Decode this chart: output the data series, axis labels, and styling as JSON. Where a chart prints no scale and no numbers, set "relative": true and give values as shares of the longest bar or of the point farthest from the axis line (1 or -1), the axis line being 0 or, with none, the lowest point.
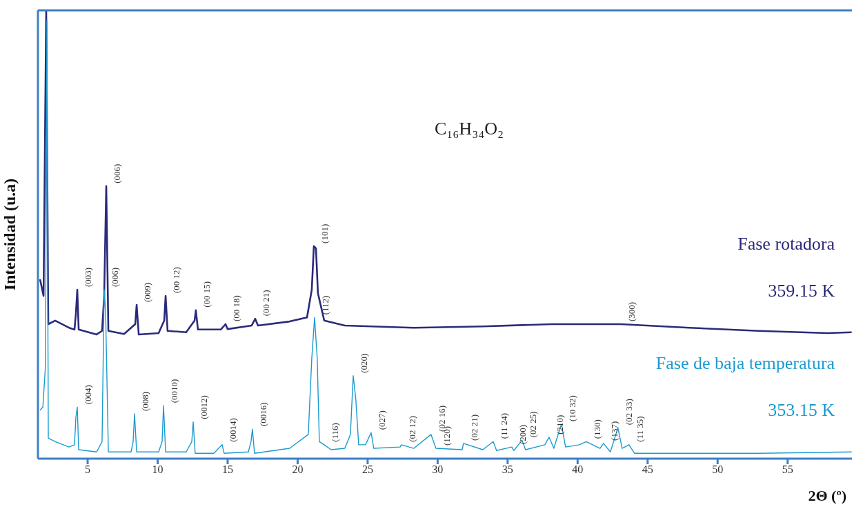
{
  "chart_data": {
    "type": "line",
    "title": "C₁₆H₃₄O₂",
    "xlabel": "2Θ (º)",
    "ylabel": "Intensidad (u.a)",
    "relative": true,
    "xlim": [
      1.45,
      59.6
    ],
    "xticks": [
      5,
      10,
      15,
      20,
      25,
      30,
      35,
      40,
      45,
      50,
      55
    ],
    "legend": false,
    "marker": "none",
    "grid": false,
    "series": [
      {
        "name": "Fase rotadora",
        "color": "#2b2a7a",
        "x": [
          1.6,
          1.85,
          2.04,
          2.19,
          2.68,
          3.67,
          4.06,
          4.16,
          4.26,
          4.36,
          5.64,
          6.03,
          6.18,
          6.33,
          6.48,
          7.6,
          8.4,
          8.5,
          8.65,
          10.07,
          10.47,
          10.57,
          10.71,
          12.04,
          12.64,
          12.73,
          12.88,
          14.51,
          14.85,
          15.0,
          16.72,
          16.97,
          17.17,
          19.43,
          20.67,
          21.01,
          21.16,
          21.31,
          21.45,
          21.9,
          23.37,
          28.3,
          33.23,
          38.15,
          43.08,
          48.0,
          52.93,
          57.86,
          59.58
        ],
        "values": [
          0.4,
          0.363,
          1.0,
          0.3,
          0.308,
          0.292,
          0.288,
          0.323,
          0.377,
          0.288,
          0.277,
          0.285,
          0.362,
          0.608,
          0.285,
          0.278,
          0.3,
          0.343,
          0.277,
          0.28,
          0.308,
          0.363,
          0.285,
          0.282,
          0.308,
          0.331,
          0.288,
          0.288,
          0.3,
          0.289,
          0.297,
          0.312,
          0.297,
          0.306,
          0.315,
          0.377,
          0.474,
          0.469,
          0.369,
          0.308,
          0.297,
          0.292,
          0.295,
          0.3,
          0.3,
          0.292,
          0.285,
          0.28,
          0.282
        ]
      },
      {
        "name": "Fase de baja temperatura",
        "color": "#1a9bd0",
        "x": [
          1.6,
          1.8,
          1.99,
          2.09,
          2.19,
          2.68,
          3.67,
          4.06,
          4.16,
          4.26,
          4.36,
          5.64,
          6.03,
          6.18,
          6.28,
          6.48,
          8.1,
          8.25,
          8.35,
          8.5,
          10.07,
          10.32,
          10.42,
          10.57,
          12.04,
          12.44,
          12.54,
          12.68,
          14.01,
          14.61,
          14.75,
          16.48,
          16.67,
          16.77,
          16.92,
          19.43,
          20.76,
          21.01,
          21.21,
          21.4,
          21.55,
          21.9,
          22.39,
          23.37,
          23.77,
          23.97,
          24.16,
          24.36,
          24.85,
          25.25,
          25.44,
          27.32,
          27.41,
          28.3,
          29.53,
          29.88,
          31.75,
          31.85,
          33.23,
          33.97,
          34.21,
          35.3,
          35.44,
          36.03,
          36.28,
          37.66,
          37.96,
          38.3,
          38.84,
          39.14,
          40.12,
          40.62,
          41.6,
          41.85,
          42.34,
          42.88,
          43.18,
          43.67,
          44.06,
          48.0,
          52.93,
          59.58
        ],
        "values": [
          0.108,
          0.115,
          0.208,
          0.977,
          0.046,
          0.038,
          0.026,
          0.031,
          0.092,
          0.115,
          0.02,
          0.015,
          0.038,
          0.377,
          0.334,
          0.015,
          0.015,
          0.038,
          0.1,
          0.015,
          0.015,
          0.038,
          0.118,
          0.015,
          0.015,
          0.038,
          0.082,
          0.012,
          0.012,
          0.031,
          0.012,
          0.015,
          0.038,
          0.066,
          0.012,
          0.023,
          0.054,
          0.223,
          0.315,
          0.223,
          0.038,
          0.031,
          0.02,
          0.023,
          0.054,
          0.185,
          0.131,
          0.031,
          0.031,
          0.058,
          0.023,
          0.026,
          0.031,
          0.023,
          0.054,
          0.023,
          0.02,
          0.034,
          0.02,
          0.038,
          0.018,
          0.026,
          0.018,
          0.041,
          0.02,
          0.031,
          0.048,
          0.023,
          0.077,
          0.026,
          0.031,
          0.038,
          0.023,
          0.034,
          0.015,
          0.069,
          0.023,
          0.031,
          0.012,
          0.012,
          0.012,
          0.015
        ]
      }
    ],
    "annotations": [
      "359.15 K",
      "353.15 K",
      {
        "text": "(003)",
        "x": 4.26,
        "y": 0.377
      },
      {
        "text": "(006)",
        "x": 6.33,
        "y": 0.608
      },
      {
        "text": "(009)",
        "x": 8.5,
        "y": 0.343
      },
      {
        "text": "(00 12)",
        "x": 10.57,
        "y": 0.363
      },
      {
        "text": "(00 15)",
        "x": 12.73,
        "y": 0.331
      },
      {
        "text": "(00 18)",
        "x": 14.85,
        "y": 0.3
      },
      {
        "text": "(00 21)",
        "x": 16.97,
        "y": 0.312
      },
      {
        "text": "(101)",
        "x": 21.16,
        "y": 0.474
      },
      {
        "text": "(300)",
        "x": 43.08,
        "y": 0.3
      },
      {
        "text": "(004)",
        "x": 4.26,
        "y": 0.115
      },
      {
        "text": "(006)",
        "x": 6.18,
        "y": 0.377
      },
      {
        "text": "(008)",
        "x": 8.35,
        "y": 0.1
      },
      {
        "text": "(0010)",
        "x": 10.42,
        "y": 0.118
      },
      {
        "text": "(0012)",
        "x": 12.54,
        "y": 0.082
      },
      {
        "text": "(0014)",
        "x": 14.61,
        "y": 0.031
      },
      {
        "text": "(0016)",
        "x": 16.77,
        "y": 0.066
      },
      {
        "text": "(112)",
        "x": 21.21,
        "y": 0.315
      },
      {
        "text": "(116)",
        "x": 21.9,
        "y": 0.031
      },
      {
        "text": "(020)",
        "x": 23.97,
        "y": 0.185
      },
      {
        "text": "(027)",
        "x": 25.25,
        "y": 0.058
      },
      {
        "text": "(02 12)",
        "x": 27.41,
        "y": 0.031
      },
      {
        "text": "(02 16)",
        "x": 29.53,
        "y": 0.054
      },
      {
        "text": "(120)",
        "x": 29.88,
        "y": 0.023
      },
      {
        "text": "(02 21)",
        "x": 31.85,
        "y": 0.034
      },
      {
        "text": "(11 24)",
        "x": 33.97,
        "y": 0.038
      },
      {
        "text": "(200)",
        "x": 35.3,
        "y": 0.026
      },
      {
        "text": "(02 25)",
        "x": 36.03,
        "y": 0.041
      },
      {
        "text": "(210)",
        "x": 37.96,
        "y": 0.048
      },
      {
        "text": "(10 32)",
        "x": 38.84,
        "y": 0.077
      },
      {
        "text": "(130)",
        "x": 40.62,
        "y": 0.038
      },
      {
        "text": "(137)",
        "x": 41.85,
        "y": 0.034
      },
      {
        "text": "(02 33)",
        "x": 42.88,
        "y": 0.069
      },
      {
        "text": "(11 35)",
        "x": 43.67,
        "y": 0.031
      }
    ]
  }
}
